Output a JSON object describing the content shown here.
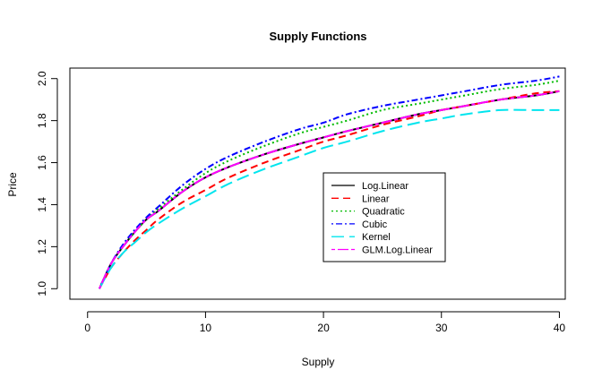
{
  "chart_data": {
    "type": "line",
    "title": "Supply Functions",
    "xlabel": "Supply",
    "ylabel": "Price",
    "xlim": [
      -1.5,
      40.5
    ],
    "ylim": [
      0.95,
      2.05
    ],
    "xticks": [
      0,
      10,
      20,
      30,
      40
    ],
    "yticks": [
      1.0,
      1.2,
      1.4,
      1.6,
      1.8,
      2.0
    ],
    "xtick_labels": [
      "0",
      "10",
      "20",
      "30",
      "40"
    ],
    "ytick_labels": [
      "1.0",
      "1.2",
      "1.4",
      "1.6",
      "1.8",
      "2.0"
    ],
    "grid": false,
    "legend_position": "center-right",
    "x": [
      1,
      2,
      3,
      4,
      5,
      6,
      8,
      10,
      12,
      15,
      18,
      20,
      22,
      25,
      28,
      30,
      32,
      35,
      38,
      40
    ],
    "series": [
      {
        "name": "Log.Linear",
        "color": "#000000",
        "dash": "solid",
        "values": [
          1.0,
          1.12,
          1.2,
          1.27,
          1.33,
          1.37,
          1.46,
          1.53,
          1.58,
          1.64,
          1.69,
          1.72,
          1.75,
          1.79,
          1.83,
          1.85,
          1.87,
          1.9,
          1.92,
          1.94
        ]
      },
      {
        "name": "Linear",
        "color": "#ff0000",
        "dash": "dashed",
        "values": [
          1.0,
          1.1,
          1.17,
          1.23,
          1.28,
          1.33,
          1.41,
          1.47,
          1.53,
          1.6,
          1.66,
          1.7,
          1.73,
          1.78,
          1.82,
          1.85,
          1.87,
          1.9,
          1.93,
          1.94
        ]
      },
      {
        "name": "Quadratic",
        "color": "#00bb00",
        "dash": "dotted",
        "values": [
          1.0,
          1.12,
          1.2,
          1.27,
          1.33,
          1.38,
          1.47,
          1.55,
          1.61,
          1.68,
          1.74,
          1.77,
          1.8,
          1.85,
          1.88,
          1.9,
          1.92,
          1.95,
          1.97,
          1.99
        ]
      },
      {
        "name": "Cubic",
        "color": "#0000ff",
        "dash": "dotdash",
        "values": [
          1.0,
          1.12,
          1.21,
          1.28,
          1.34,
          1.39,
          1.49,
          1.57,
          1.63,
          1.7,
          1.76,
          1.79,
          1.83,
          1.87,
          1.9,
          1.92,
          1.94,
          1.97,
          1.99,
          2.01
        ]
      },
      {
        "name": "Kernel",
        "color": "#00e5ee",
        "dash": "longdash",
        "values": [
          1.0,
          1.1,
          1.17,
          1.22,
          1.27,
          1.31,
          1.38,
          1.44,
          1.5,
          1.57,
          1.63,
          1.67,
          1.7,
          1.75,
          1.79,
          1.81,
          1.83,
          1.85,
          1.85,
          1.85
        ]
      },
      {
        "name": "GLM.Log.Linear",
        "color": "#ff00ff",
        "dash": "twodash",
        "values": [
          1.0,
          1.12,
          1.2,
          1.27,
          1.33,
          1.37,
          1.46,
          1.53,
          1.58,
          1.64,
          1.69,
          1.72,
          1.75,
          1.79,
          1.83,
          1.85,
          1.87,
          1.9,
          1.92,
          1.94
        ]
      }
    ]
  }
}
